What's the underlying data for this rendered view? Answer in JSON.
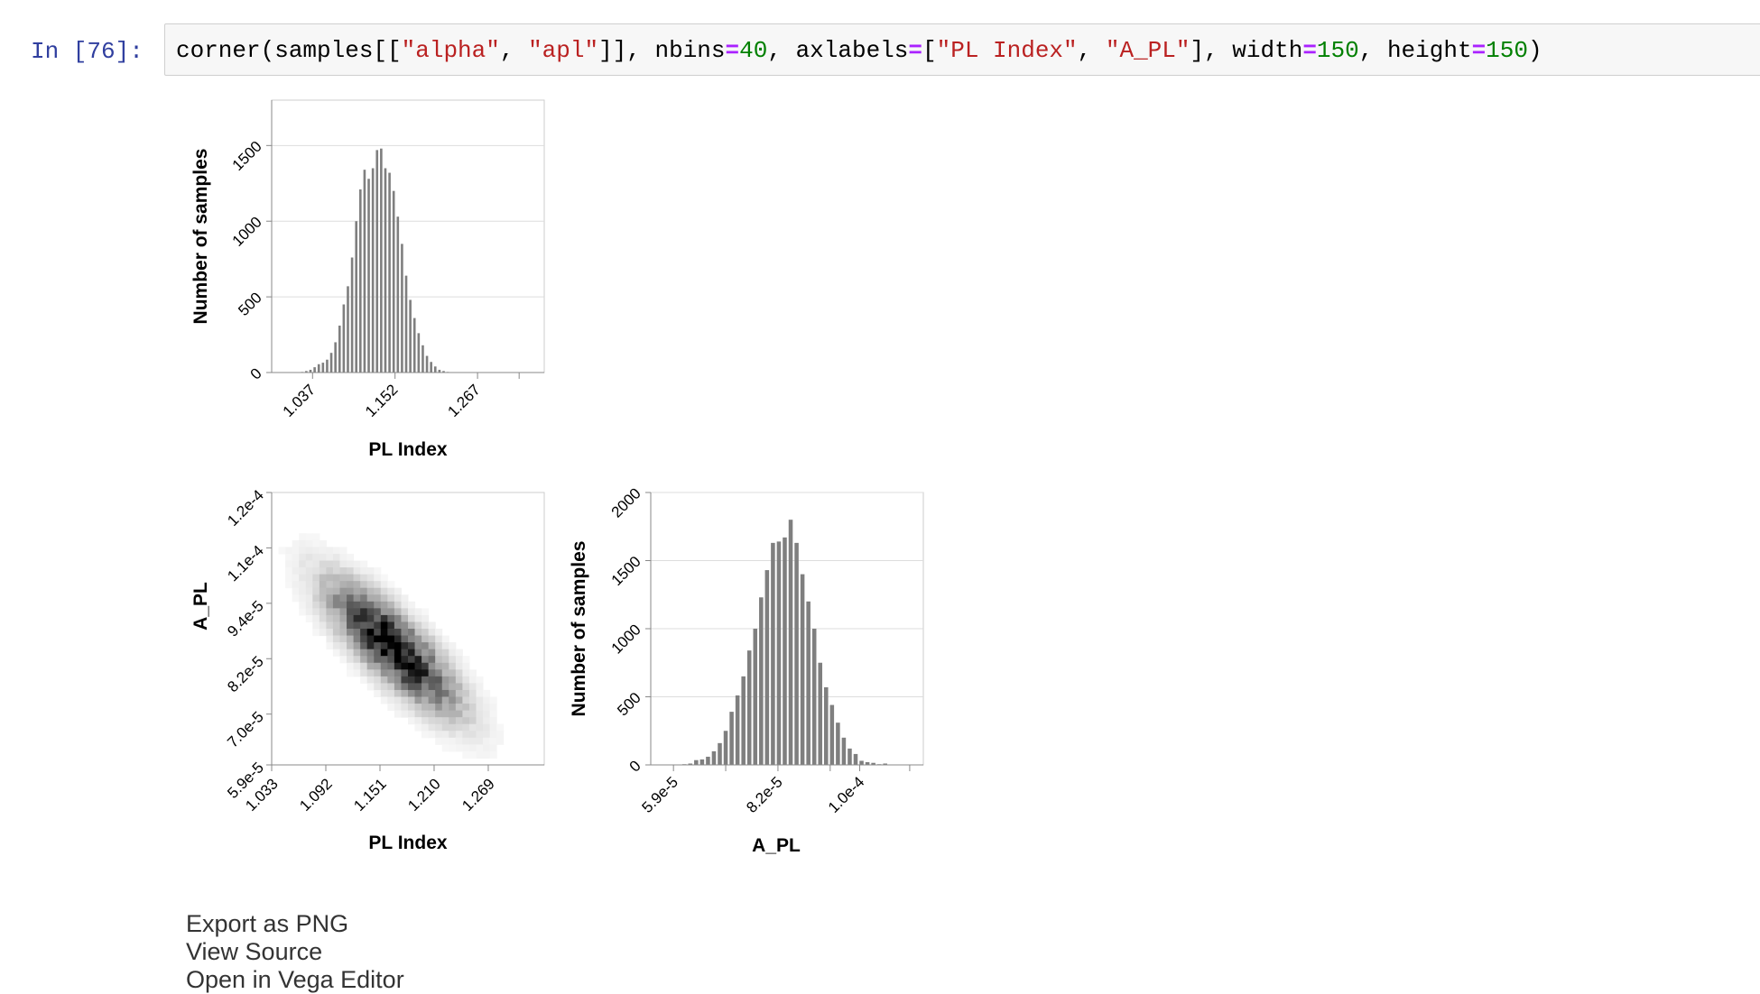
{
  "cell": {
    "prompt": "In [76]:",
    "code_tokens": [
      {
        "t": "corner(samples[[",
        "c": "plain"
      },
      {
        "t": "\"alpha\"",
        "c": "str"
      },
      {
        "t": ", ",
        "c": "plain"
      },
      {
        "t": "\"apl\"",
        "c": "str"
      },
      {
        "t": "]], nbins",
        "c": "plain"
      },
      {
        "t": "=",
        "c": "op"
      },
      {
        "t": "40",
        "c": "num"
      },
      {
        "t": ", axlabels",
        "c": "plain"
      },
      {
        "t": "=",
        "c": "op"
      },
      {
        "t": "[",
        "c": "plain"
      },
      {
        "t": "\"PL Index\"",
        "c": "str"
      },
      {
        "t": ", ",
        "c": "plain"
      },
      {
        "t": "\"A_PL\"",
        "c": "str"
      },
      {
        "t": "], width",
        "c": "plain"
      },
      {
        "t": "=",
        "c": "op"
      },
      {
        "t": "150",
        "c": "num"
      },
      {
        "t": ", height",
        "c": "plain"
      },
      {
        "t": "=",
        "c": "op"
      },
      {
        "t": "150",
        "c": "num"
      },
      {
        "t": ")",
        "c": "plain"
      }
    ]
  },
  "actions": {
    "export_png": "Export as PNG",
    "view_source": "View Source",
    "open_editor": "Open in Vega Editor"
  },
  "chart_data": [
    {
      "type": "bar",
      "panel": "top-left",
      "xlabel": "PL Index",
      "ylabel": "Number of samples",
      "xticks": [
        "1.037",
        "1.152",
        "1.267"
      ],
      "xtick_values": [
        1.037,
        1.152,
        1.267
      ],
      "yticks": [
        0,
        500,
        1000,
        1500
      ],
      "ylim": [
        0,
        1800
      ],
      "xlim": [
        0.98,
        1.36
      ],
      "bin_width": 0.0058,
      "bin_centers": [
        1.0225,
        1.0283,
        1.0341,
        1.0399,
        1.0457,
        1.0515,
        1.0573,
        1.0631,
        1.0689,
        1.0747,
        1.0805,
        1.0863,
        1.0921,
        1.0979,
        1.1037,
        1.1095,
        1.1153,
        1.1211,
        1.1269,
        1.1327,
        1.1385,
        1.1443,
        1.1501,
        1.1559,
        1.1617,
        1.1675,
        1.1733,
        1.1791,
        1.1849,
        1.1907,
        1.1965,
        1.2023,
        1.2081,
        1.2139,
        1.2197,
        1.2255,
        1.2313,
        1.2371,
        1.2429,
        1.2487
      ],
      "values": [
        4,
        10,
        18,
        35,
        55,
        65,
        85,
        130,
        200,
        310,
        450,
        570,
        760,
        1000,
        1210,
        1340,
        1280,
        1350,
        1470,
        1480,
        1350,
        1320,
        1200,
        1030,
        850,
        640,
        480,
        360,
        260,
        180,
        110,
        70,
        40,
        18,
        10,
        4,
        2,
        1,
        0,
        0
      ]
    },
    {
      "type": "heatmap",
      "panel": "bottom-left",
      "xlabel": "PL Index",
      "ylabel": "A_PL",
      "xticks": [
        "1.033",
        "1.092",
        "1.151",
        "1.210",
        "1.269"
      ],
      "xtick_values": [
        1.033,
        1.092,
        1.151,
        1.21,
        1.269
      ],
      "xlim": [
        1.033,
        1.33
      ],
      "yticks": [
        "5.9e-5",
        "7.0e-5",
        "8.2e-5",
        "9.4e-5",
        "1.1e-4",
        "1.2e-4"
      ],
      "ytick_values": [
        5.9e-05,
        7e-05,
        8.2e-05,
        9.4e-05,
        0.000106,
        0.000118
      ],
      "ylim": [
        5.9e-05,
        0.000118
      ],
      "center": [
        1.165,
        8.45e-05
      ],
      "note_correlation": "negative"
    },
    {
      "type": "bar",
      "panel": "bottom-right",
      "xlabel": "A_PL",
      "ylabel": "Number of samples",
      "xticks": [
        "5.9e-5",
        "8.2e-5",
        "1.0e-4"
      ],
      "xtick_values": [
        5.9e-05,
        8.2e-05,
        0.0001
      ],
      "yticks": [
        0,
        500,
        1000,
        1500,
        2000
      ],
      "ylim": [
        0,
        2000
      ],
      "xlim": [
        5.4e-05,
        0.000114
      ],
      "bin_width": 1.3e-06,
      "bin_centers_e5": [
        5.75,
        5.88,
        6.01,
        6.14,
        6.27,
        6.4,
        6.53,
        6.66,
        6.79,
        6.92,
        7.05,
        7.18,
        7.31,
        7.44,
        7.57,
        7.7,
        7.83,
        7.96,
        8.09,
        8.22,
        8.35,
        8.48,
        8.61,
        8.74,
        8.87,
        9.0,
        9.13,
        9.26,
        9.39,
        9.52,
        9.65,
        9.78,
        9.91,
        10.04,
        10.17,
        10.3,
        10.43,
        10.56,
        10.69,
        10.82
      ],
      "values": [
        0,
        2,
        0,
        5,
        10,
        35,
        40,
        60,
        100,
        160,
        250,
        390,
        510,
        650,
        840,
        1000,
        1230,
        1430,
        1630,
        1640,
        1670,
        1800,
        1630,
        1400,
        1200,
        1000,
        750,
        570,
        440,
        310,
        200,
        120,
        80,
        30,
        20,
        15,
        5,
        10,
        2,
        0
      ]
    }
  ]
}
